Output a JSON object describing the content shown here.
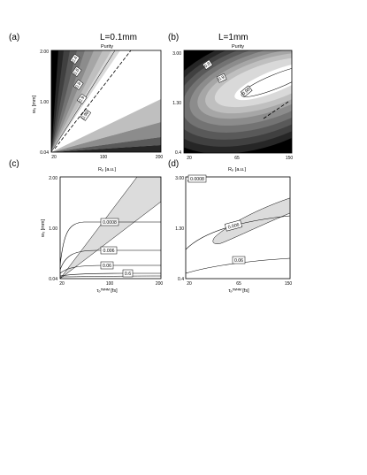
{
  "figure": {
    "heading_left": "L=0.1mm",
    "heading_right": "L=1mm"
  },
  "chart_data": [
    {
      "panel": "(a)",
      "type": "contour",
      "title": "Purity",
      "ylabel": "w₀ [mm]",
      "x_ticks": [
        "20",
        "100",
        "200"
      ],
      "y_ticks": [
        "0.04",
        "1.00",
        "2.00"
      ],
      "x": [
        20,
        200
      ],
      "y": [
        0.04,
        2.0
      ],
      "contour_labels": [
        "0.4",
        "0.6",
        "0.8",
        "0.9",
        "0.98"
      ],
      "colors": [
        "#000000",
        "#262626",
        "#404040",
        "#595959",
        "#737373",
        "#8c8c8c",
        "#a6a6a6",
        "#bfbfbf",
        "#d9d9d9",
        "#ffffff"
      ]
    },
    {
      "panel": "(b)",
      "type": "contour",
      "title": "Purity",
      "ylabel": "",
      "x_ticks": [
        "20",
        "65",
        "150"
      ],
      "y_ticks": [
        "0.4",
        "1.30",
        "3.00"
      ],
      "x": [
        20,
        150
      ],
      "y": [
        0.4,
        3.0
      ],
      "contour_labels": [
        "0.8",
        "0.9",
        "0.98"
      ],
      "colors": [
        "#000000",
        "#262626",
        "#404040",
        "#595959",
        "#737373",
        "#8c8c8c",
        "#a6a6a6",
        "#bfbfbf",
        "#d9d9d9",
        "#ffffff"
      ]
    },
    {
      "panel": "(c)",
      "type": "contour",
      "title": "Rₚ [a.u.]",
      "ylabel": "w₀ [mm]",
      "xlabel": "τₚᶠᵂᴴᴹ [fs]",
      "x_ticks": [
        "20",
        "100",
        "200"
      ],
      "y_ticks": [
        "0.04",
        "1.00",
        "2.00"
      ],
      "x": [
        20,
        200
      ],
      "y": [
        0.04,
        2.0
      ],
      "contour_labels": [
        "0.0008",
        "0.006",
        "0.06",
        "0.6"
      ]
    },
    {
      "panel": "(d)",
      "type": "contour",
      "title": "Rₚ [a.u.]",
      "ylabel": "",
      "xlabel": "τₚᶠᵂᴴᴹ [fs]",
      "x_ticks": [
        "20",
        "65",
        "150"
      ],
      "y_ticks": [
        "0.4",
        "1.30",
        "3.00"
      ],
      "x": [
        20,
        150
      ],
      "y": [
        0.4,
        3.0
      ],
      "contour_labels": [
        "0.0008",
        "0.006",
        "0.06"
      ]
    }
  ]
}
